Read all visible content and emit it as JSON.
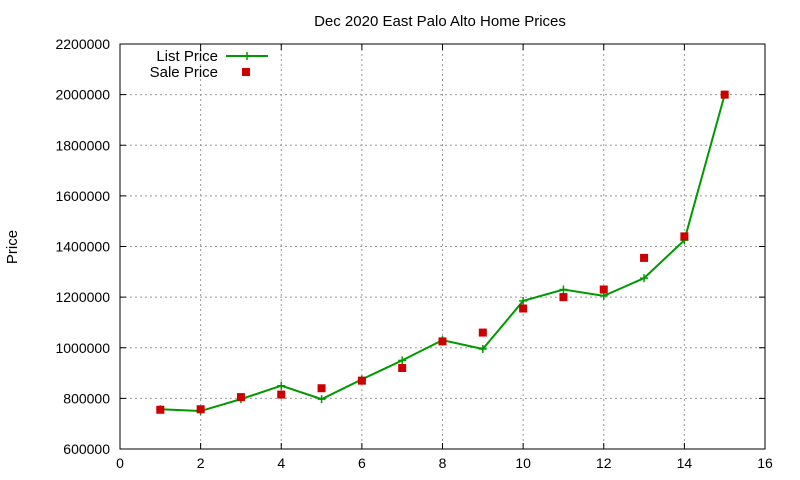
{
  "chart_data": {
    "type": "line",
    "title": "Dec 2020 East Palo Alto Home Prices",
    "xlabel": "",
    "ylabel": "Price",
    "xlim": [
      0,
      16
    ],
    "ylim": [
      600000,
      2200000
    ],
    "x_ticks": [
      0,
      2,
      4,
      6,
      8,
      10,
      12,
      14,
      16
    ],
    "y_ticks": [
      600000,
      800000,
      1000000,
      1200000,
      1400000,
      1600000,
      1800000,
      2000000,
      2200000
    ],
    "grid": true,
    "legend_position": "top-left",
    "series": [
      {
        "name": "List Price",
        "style": "line-with-plus-markers",
        "color": "#009900",
        "x": [
          1,
          2,
          3,
          4,
          5,
          6,
          7,
          8,
          9,
          10,
          11,
          12,
          13,
          14,
          15
        ],
        "y": [
          757000,
          750000,
          797000,
          850000,
          797000,
          875000,
          950000,
          1030000,
          995000,
          1185000,
          1230000,
          1205000,
          1275000,
          1425000,
          2000000
        ]
      },
      {
        "name": "Sale Price",
        "style": "square-markers",
        "color": "#cc0000",
        "x": [
          1,
          2,
          3,
          4,
          5,
          6,
          7,
          8,
          9,
          10,
          11,
          12,
          13,
          14,
          15
        ],
        "y": [
          755000,
          757000,
          805000,
          815000,
          840000,
          870000,
          920000,
          1025000,
          1060000,
          1155000,
          1200000,
          1230000,
          1355000,
          1440000,
          2000000
        ]
      }
    ]
  }
}
